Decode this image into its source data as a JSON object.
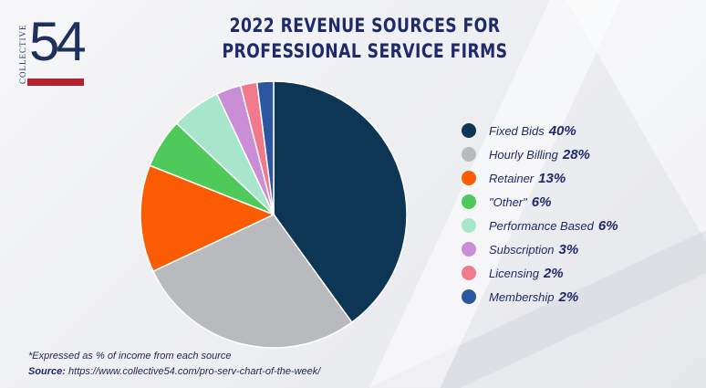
{
  "logo": {
    "vertical_text": "COLLECTIVE",
    "number": "54"
  },
  "title_lines": [
    "2022 REVENUE SOURCES FOR",
    "PROFESSIONAL SERVICE FIRMS"
  ],
  "footnote": "*Expressed as % of income from each source",
  "source": {
    "label": "Source:",
    "url": "https://www.collective54.com/pro-serv-chart-of-the-week/"
  },
  "chart_data": {
    "type": "pie",
    "title": "2022 REVENUE SOURCES FOR PROFESSIONAL SERVICE FIRMS",
    "legend_position": "right",
    "slices": [
      {
        "label": "Fixed Bids",
        "value": 40,
        "value_label": "40%",
        "color": "#0d3554"
      },
      {
        "label": "Hourly Billing",
        "value": 28,
        "value_label": "28%",
        "color": "#b9babd"
      },
      {
        "label": "Retainer",
        "value": 13,
        "value_label": "13%",
        "color": "#fb5b03"
      },
      {
        "label": "\"Other\"",
        "value": 6,
        "value_label": "6%",
        "color": "#4fc95a"
      },
      {
        "label": "Performance Based",
        "value": 6,
        "value_label": "6%",
        "color": "#a8e6cc"
      },
      {
        "label": "Subscription",
        "value": 3,
        "value_label": "3%",
        "color": "#c98ed6"
      },
      {
        "label": "Licensing",
        "value": 2,
        "value_label": "2%",
        "color": "#f07a8c"
      },
      {
        "label": "Membership",
        "value": 2,
        "value_label": "2%",
        "color": "#2c57a0"
      }
    ]
  }
}
